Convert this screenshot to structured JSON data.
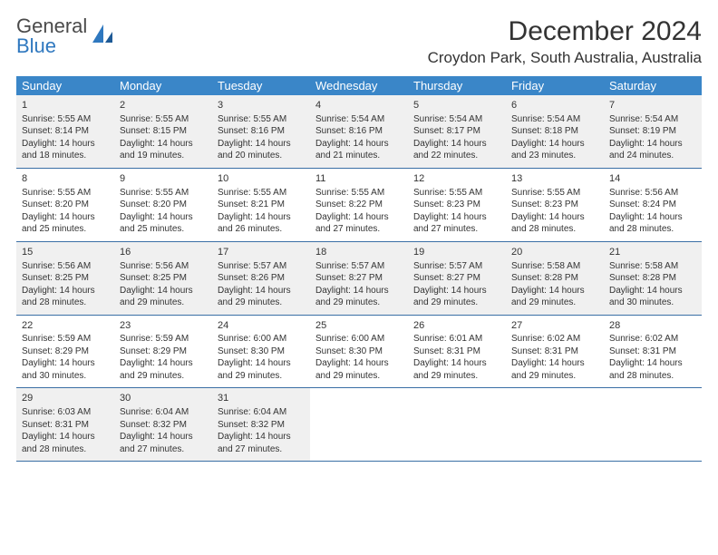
{
  "logo": {
    "text_top": "General",
    "text_bottom": "Blue"
  },
  "title": {
    "month": "December 2024",
    "location": "Croydon Park, South Australia, Australia"
  },
  "colors": {
    "header_bg": "#3a86c8",
    "header_text": "#ffffff",
    "row_divider": "#3a6fa5",
    "shaded_bg": "#f0f0f0",
    "text": "#333333",
    "logo_gray": "#4a4a4a",
    "logo_blue": "#2f78bf"
  },
  "weekdays": [
    "Sunday",
    "Monday",
    "Tuesday",
    "Wednesday",
    "Thursday",
    "Friday",
    "Saturday"
  ],
  "weeks": [
    {
      "shaded": true,
      "days": [
        {
          "n": "1",
          "sr": "Sunrise: 5:55 AM",
          "ss": "Sunset: 8:14 PM",
          "d1": "Daylight: 14 hours",
          "d2": "and 18 minutes."
        },
        {
          "n": "2",
          "sr": "Sunrise: 5:55 AM",
          "ss": "Sunset: 8:15 PM",
          "d1": "Daylight: 14 hours",
          "d2": "and 19 minutes."
        },
        {
          "n": "3",
          "sr": "Sunrise: 5:55 AM",
          "ss": "Sunset: 8:16 PM",
          "d1": "Daylight: 14 hours",
          "d2": "and 20 minutes."
        },
        {
          "n": "4",
          "sr": "Sunrise: 5:54 AM",
          "ss": "Sunset: 8:16 PM",
          "d1": "Daylight: 14 hours",
          "d2": "and 21 minutes."
        },
        {
          "n": "5",
          "sr": "Sunrise: 5:54 AM",
          "ss": "Sunset: 8:17 PM",
          "d1": "Daylight: 14 hours",
          "d2": "and 22 minutes."
        },
        {
          "n": "6",
          "sr": "Sunrise: 5:54 AM",
          "ss": "Sunset: 8:18 PM",
          "d1": "Daylight: 14 hours",
          "d2": "and 23 minutes."
        },
        {
          "n": "7",
          "sr": "Sunrise: 5:54 AM",
          "ss": "Sunset: 8:19 PM",
          "d1": "Daylight: 14 hours",
          "d2": "and 24 minutes."
        }
      ]
    },
    {
      "shaded": false,
      "days": [
        {
          "n": "8",
          "sr": "Sunrise: 5:55 AM",
          "ss": "Sunset: 8:20 PM",
          "d1": "Daylight: 14 hours",
          "d2": "and 25 minutes."
        },
        {
          "n": "9",
          "sr": "Sunrise: 5:55 AM",
          "ss": "Sunset: 8:20 PM",
          "d1": "Daylight: 14 hours",
          "d2": "and 25 minutes."
        },
        {
          "n": "10",
          "sr": "Sunrise: 5:55 AM",
          "ss": "Sunset: 8:21 PM",
          "d1": "Daylight: 14 hours",
          "d2": "and 26 minutes."
        },
        {
          "n": "11",
          "sr": "Sunrise: 5:55 AM",
          "ss": "Sunset: 8:22 PM",
          "d1": "Daylight: 14 hours",
          "d2": "and 27 minutes."
        },
        {
          "n": "12",
          "sr": "Sunrise: 5:55 AM",
          "ss": "Sunset: 8:23 PM",
          "d1": "Daylight: 14 hours",
          "d2": "and 27 minutes."
        },
        {
          "n": "13",
          "sr": "Sunrise: 5:55 AM",
          "ss": "Sunset: 8:23 PM",
          "d1": "Daylight: 14 hours",
          "d2": "and 28 minutes."
        },
        {
          "n": "14",
          "sr": "Sunrise: 5:56 AM",
          "ss": "Sunset: 8:24 PM",
          "d1": "Daylight: 14 hours",
          "d2": "and 28 minutes."
        }
      ]
    },
    {
      "shaded": true,
      "days": [
        {
          "n": "15",
          "sr": "Sunrise: 5:56 AM",
          "ss": "Sunset: 8:25 PM",
          "d1": "Daylight: 14 hours",
          "d2": "and 28 minutes."
        },
        {
          "n": "16",
          "sr": "Sunrise: 5:56 AM",
          "ss": "Sunset: 8:25 PM",
          "d1": "Daylight: 14 hours",
          "d2": "and 29 minutes."
        },
        {
          "n": "17",
          "sr": "Sunrise: 5:57 AM",
          "ss": "Sunset: 8:26 PM",
          "d1": "Daylight: 14 hours",
          "d2": "and 29 minutes."
        },
        {
          "n": "18",
          "sr": "Sunrise: 5:57 AM",
          "ss": "Sunset: 8:27 PM",
          "d1": "Daylight: 14 hours",
          "d2": "and 29 minutes."
        },
        {
          "n": "19",
          "sr": "Sunrise: 5:57 AM",
          "ss": "Sunset: 8:27 PM",
          "d1": "Daylight: 14 hours",
          "d2": "and 29 minutes."
        },
        {
          "n": "20",
          "sr": "Sunrise: 5:58 AM",
          "ss": "Sunset: 8:28 PM",
          "d1": "Daylight: 14 hours",
          "d2": "and 29 minutes."
        },
        {
          "n": "21",
          "sr": "Sunrise: 5:58 AM",
          "ss": "Sunset: 8:28 PM",
          "d1": "Daylight: 14 hours",
          "d2": "and 30 minutes."
        }
      ]
    },
    {
      "shaded": false,
      "days": [
        {
          "n": "22",
          "sr": "Sunrise: 5:59 AM",
          "ss": "Sunset: 8:29 PM",
          "d1": "Daylight: 14 hours",
          "d2": "and 30 minutes."
        },
        {
          "n": "23",
          "sr": "Sunrise: 5:59 AM",
          "ss": "Sunset: 8:29 PM",
          "d1": "Daylight: 14 hours",
          "d2": "and 29 minutes."
        },
        {
          "n": "24",
          "sr": "Sunrise: 6:00 AM",
          "ss": "Sunset: 8:30 PM",
          "d1": "Daylight: 14 hours",
          "d2": "and 29 minutes."
        },
        {
          "n": "25",
          "sr": "Sunrise: 6:00 AM",
          "ss": "Sunset: 8:30 PM",
          "d1": "Daylight: 14 hours",
          "d2": "and 29 minutes."
        },
        {
          "n": "26",
          "sr": "Sunrise: 6:01 AM",
          "ss": "Sunset: 8:31 PM",
          "d1": "Daylight: 14 hours",
          "d2": "and 29 minutes."
        },
        {
          "n": "27",
          "sr": "Sunrise: 6:02 AM",
          "ss": "Sunset: 8:31 PM",
          "d1": "Daylight: 14 hours",
          "d2": "and 29 minutes."
        },
        {
          "n": "28",
          "sr": "Sunrise: 6:02 AM",
          "ss": "Sunset: 8:31 PM",
          "d1": "Daylight: 14 hours",
          "d2": "and 28 minutes."
        }
      ]
    },
    {
      "shaded": true,
      "days": [
        {
          "n": "29",
          "sr": "Sunrise: 6:03 AM",
          "ss": "Sunset: 8:31 PM",
          "d1": "Daylight: 14 hours",
          "d2": "and 28 minutes."
        },
        {
          "n": "30",
          "sr": "Sunrise: 6:04 AM",
          "ss": "Sunset: 8:32 PM",
          "d1": "Daylight: 14 hours",
          "d2": "and 27 minutes."
        },
        {
          "n": "31",
          "sr": "Sunrise: 6:04 AM",
          "ss": "Sunset: 8:32 PM",
          "d1": "Daylight: 14 hours",
          "d2": "and 27 minutes."
        },
        {
          "empty": true
        },
        {
          "empty": true
        },
        {
          "empty": true
        },
        {
          "empty": true
        }
      ]
    }
  ]
}
